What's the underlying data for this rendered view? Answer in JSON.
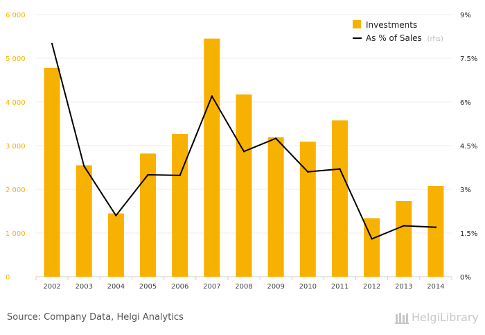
{
  "chart_data": {
    "type": "bar+line",
    "categories": [
      "2002",
      "2003",
      "2004",
      "2005",
      "2006",
      "2007",
      "2008",
      "2009",
      "2010",
      "2011",
      "2012",
      "2013",
      "2014"
    ],
    "series": [
      {
        "name": "Investments",
        "type": "bar",
        "axis": "left",
        "color": "#f7b100",
        "values": [
          4780,
          2550,
          1450,
          2820,
          3270,
          5450,
          4170,
          3190,
          3090,
          3580,
          1340,
          1730,
          2080
        ]
      },
      {
        "name": "As % of Sales",
        "legend_suffix": "(rhs)",
        "type": "line",
        "axis": "right",
        "color": "#000000",
        "values": [
          8.0,
          3.8,
          2.1,
          3.5,
          3.48,
          6.2,
          4.3,
          4.75,
          3.6,
          3.7,
          1.3,
          1.75,
          1.7
        ]
      }
    ],
    "y_left": {
      "ylim": [
        0,
        6000
      ],
      "ticks": [
        0,
        1000,
        2000,
        3000,
        4000,
        5000,
        6000
      ],
      "tick_labels": [
        "0",
        "1 000",
        "2 000",
        "3 000",
        "4 000",
        "5 000",
        "6 000"
      ],
      "color": "#f7b100"
    },
    "y_right": {
      "ylim": [
        0,
        9
      ],
      "ticks": [
        0,
        1.5,
        3,
        4.5,
        6,
        7.5,
        9
      ],
      "tick_labels": [
        "0%",
        "1.5%",
        "3%",
        "4.5%",
        "6%",
        "7.5%",
        "9%"
      ],
      "color": "#222222"
    },
    "grid": "horizontal",
    "legend": "top-right"
  },
  "footer": {
    "source": "Source: Company Data, Helgi Analytics",
    "brand": "HelgiLibrary"
  }
}
